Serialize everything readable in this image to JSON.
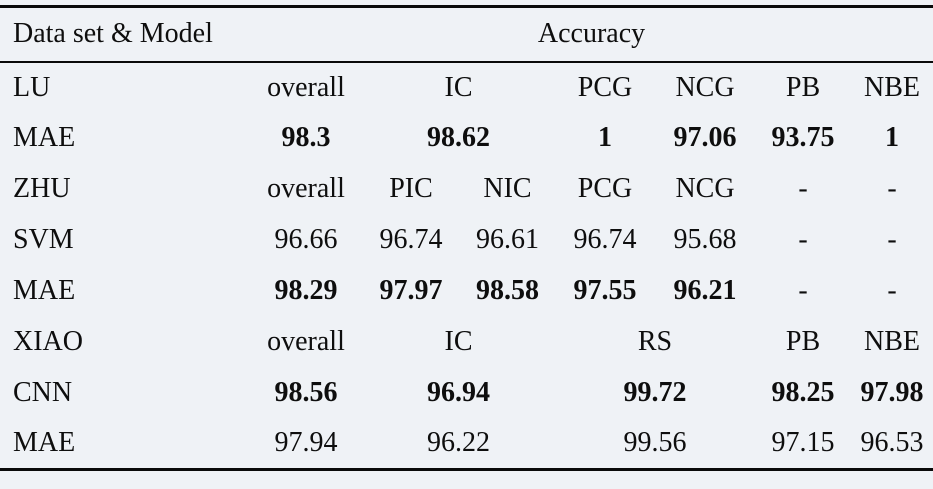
{
  "page": {
    "background_color": "#eff2f6",
    "text_color": "#0e0e0e",
    "rule_color": "#0a0a0a"
  },
  "table": {
    "header": {
      "label": "Data set & Model",
      "accuracy": "Accuracy"
    },
    "rows": [
      {
        "name": "lu-metrics-header-row",
        "label": "LU",
        "bold": false,
        "cells": [
          {
            "text": "overall",
            "span": 1
          },
          {
            "text": "IC",
            "span": 2
          },
          {
            "text": "PCG",
            "span": 1
          },
          {
            "text": "NCG",
            "span": 1
          },
          {
            "text": "PB",
            "span": 1
          },
          {
            "text": "NBE",
            "span": 1
          }
        ]
      },
      {
        "name": "lu-mae-row",
        "label": "MAE",
        "bold": true,
        "cells": [
          {
            "text": "98.3",
            "span": 1
          },
          {
            "text": "98.62",
            "span": 2
          },
          {
            "text": "1",
            "span": 1
          },
          {
            "text": "97.06",
            "span": 1
          },
          {
            "text": "93.75",
            "span": 1
          },
          {
            "text": "1",
            "span": 1
          }
        ]
      },
      {
        "name": "zhu-metrics-header-row",
        "label": "ZHU",
        "bold": false,
        "cells": [
          {
            "text": "overall",
            "span": 1
          },
          {
            "text": "PIC",
            "span": 1
          },
          {
            "text": "NIC",
            "span": 1
          },
          {
            "text": "PCG",
            "span": 1
          },
          {
            "text": "NCG",
            "span": 1
          },
          {
            "text": "-",
            "span": 1
          },
          {
            "text": "-",
            "span": 1
          }
        ]
      },
      {
        "name": "zhu-svm-row",
        "label": "SVM",
        "bold": false,
        "cells": [
          {
            "text": "96.66",
            "span": 1
          },
          {
            "text": "96.74",
            "span": 1
          },
          {
            "text": "96.61",
            "span": 1
          },
          {
            "text": "96.74",
            "span": 1
          },
          {
            "text": "95.68",
            "span": 1
          },
          {
            "text": "-",
            "span": 1
          },
          {
            "text": "-",
            "span": 1
          }
        ]
      },
      {
        "name": "zhu-mae-row",
        "label": "MAE",
        "bold": true,
        "cells": [
          {
            "text": "98.29",
            "span": 1
          },
          {
            "text": "97.97",
            "span": 1
          },
          {
            "text": "98.58",
            "span": 1
          },
          {
            "text": "97.55",
            "span": 1
          },
          {
            "text": "96.21",
            "span": 1
          },
          {
            "text": "-",
            "span": 1,
            "bold": false
          },
          {
            "text": "-",
            "span": 1,
            "bold": false
          }
        ]
      },
      {
        "name": "xiao-metrics-header-row",
        "label": "XIAO",
        "bold": false,
        "cells": [
          {
            "text": "overall",
            "span": 1
          },
          {
            "text": "IC",
            "span": 2
          },
          {
            "text": "RS",
            "span": 2
          },
          {
            "text": "PB",
            "span": 1
          },
          {
            "text": "NBE",
            "span": 1
          }
        ]
      },
      {
        "name": "xiao-cnn-row",
        "label": "CNN",
        "bold": true,
        "cells": [
          {
            "text": "98.56",
            "span": 1
          },
          {
            "text": "96.94",
            "span": 2
          },
          {
            "text": "99.72",
            "span": 2
          },
          {
            "text": "98.25",
            "span": 1
          },
          {
            "text": "97.98",
            "span": 1
          }
        ]
      },
      {
        "name": "xiao-mae-row",
        "label": "MAE",
        "bold": false,
        "cells": [
          {
            "text": "97.94",
            "span": 1
          },
          {
            "text": "96.22",
            "span": 2
          },
          {
            "text": "99.56",
            "span": 2
          },
          {
            "text": "97.15",
            "span": 1
          },
          {
            "text": "96.53",
            "span": 1
          }
        ]
      }
    ]
  }
}
